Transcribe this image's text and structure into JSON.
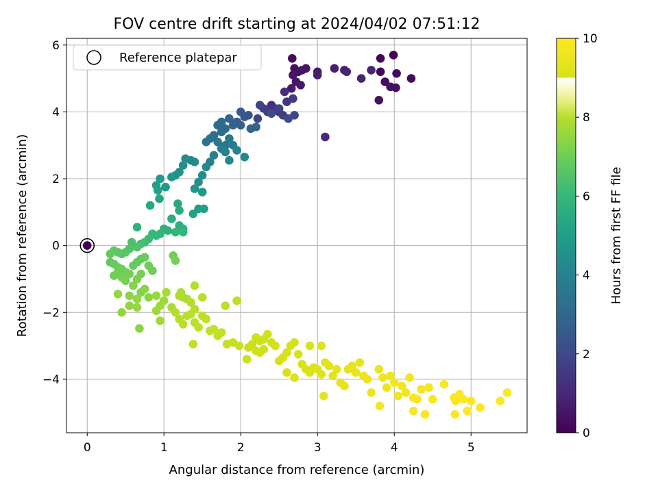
{
  "chart_data": {
    "type": "scatter",
    "title": "FOV centre drift starting at 2024/04/02 07:51:12",
    "xlabel": "Angular distance from reference (arcmin)",
    "ylabel": "Rotation from reference (arcmin)",
    "xlim": [
      -0.27,
      5.73
    ],
    "ylim": [
      -5.6,
      6.2
    ],
    "xticks": [
      0,
      1,
      2,
      3,
      4,
      5
    ],
    "yticks": [
      -4,
      -2,
      0,
      2,
      4,
      6
    ],
    "grid": true,
    "legend": {
      "position": "top-left",
      "entries": [
        "Reference platepar"
      ]
    },
    "colorbar": {
      "label": "Hours from first FF file",
      "min": 0,
      "max": 10,
      "ticks": [
        0,
        2,
        4,
        6,
        8,
        10
      ],
      "colormap": "viridis"
    },
    "reference_point": {
      "x": 0,
      "y": 0
    },
    "points": [
      [
        0.0,
        0.0,
        0.0
      ],
      [
        2.67,
        5.6,
        0.2
      ],
      [
        2.7,
        5.3,
        0.3
      ],
      [
        2.75,
        5.2,
        0.4
      ],
      [
        2.8,
        5.25,
        0.45
      ],
      [
        2.85,
        5.3,
        0.5
      ],
      [
        2.68,
        5.1,
        0.5
      ],
      [
        2.72,
        4.9,
        0.55
      ],
      [
        2.78,
        4.8,
        0.6
      ],
      [
        2.66,
        4.7,
        0.65
      ],
      [
        3.0,
        5.2,
        0.7
      ],
      [
        3.0,
        5.1,
        0.75
      ],
      [
        3.22,
        5.3,
        0.8
      ],
      [
        3.35,
        5.25,
        0.85
      ],
      [
        3.38,
        5.2,
        0.9
      ],
      [
        3.57,
        5.0,
        0.9
      ],
      [
        3.7,
        5.25,
        0.95
      ],
      [
        3.82,
        5.6,
        0.1
      ],
      [
        3.99,
        5.7,
        0.05
      ],
      [
        3.82,
        5.2,
        0.15
      ],
      [
        4.03,
        5.15,
        0.2
      ],
      [
        4.22,
        5.0,
        0.25
      ],
      [
        3.88,
        4.9,
        0.3
      ],
      [
        3.95,
        4.75,
        0.35
      ],
      [
        4.02,
        4.72,
        0.35
      ],
      [
        3.8,
        4.35,
        0.4
      ],
      [
        3.1,
        3.25,
        1.0
      ],
      [
        2.4,
        4.2,
        1.3
      ],
      [
        2.45,
        4.1,
        1.4
      ],
      [
        2.5,
        4.0,
        1.5
      ],
      [
        2.55,
        3.9,
        1.6
      ],
      [
        2.57,
        4.6,
        1.2
      ],
      [
        2.6,
        4.3,
        1.4
      ],
      [
        2.3,
        4.1,
        1.6
      ],
      [
        2.35,
        4.0,
        1.7
      ],
      [
        2.22,
        3.8,
        1.9
      ],
      [
        2.25,
        4.2,
        1.8
      ],
      [
        2.68,
        4.4,
        1.5
      ],
      [
        2.7,
        3.9,
        1.9
      ],
      [
        2.62,
        3.8,
        2.0
      ],
      [
        2.5,
        4.1,
        1.8
      ],
      [
        2.4,
        3.95,
        2.1
      ],
      [
        2.1,
        3.9,
        2.3
      ],
      [
        2.05,
        3.85,
        2.4
      ],
      [
        2.0,
        4.0,
        2.5
      ],
      [
        1.95,
        3.7,
        2.6
      ],
      [
        2.0,
        3.6,
        2.7
      ],
      [
        1.9,
        3.6,
        2.8
      ],
      [
        1.85,
        3.8,
        2.9
      ],
      [
        1.8,
        3.5,
        3.0
      ],
      [
        1.75,
        3.4,
        3.1
      ],
      [
        2.13,
        3.5,
        2.8
      ],
      [
        2.2,
        3.55,
        2.9
      ],
      [
        1.75,
        3.7,
        3.0
      ],
      [
        1.7,
        3.6,
        3.1
      ],
      [
        1.65,
        3.3,
        3.2
      ],
      [
        1.6,
        3.2,
        3.3
      ],
      [
        1.55,
        3.1,
        3.4
      ],
      [
        1.7,
        3.1,
        3.5
      ],
      [
        1.8,
        3.0,
        3.6
      ],
      [
        1.85,
        3.2,
        3.6
      ],
      [
        1.9,
        3.0,
        3.7
      ],
      [
        1.75,
        2.9,
        3.8
      ],
      [
        1.65,
        2.7,
        3.9
      ],
      [
        1.6,
        2.5,
        4.0
      ],
      [
        1.8,
        2.8,
        4.0
      ],
      [
        1.95,
        2.85,
        4.1
      ],
      [
        2.05,
        2.65,
        4.2
      ],
      [
        1.85,
        2.55,
        4.2
      ],
      [
        1.55,
        2.35,
        4.3
      ],
      [
        1.5,
        2.1,
        4.4
      ],
      [
        1.45,
        1.9,
        4.5
      ],
      [
        1.4,
        2.5,
        4.4
      ],
      [
        1.35,
        2.55,
        4.3
      ],
      [
        1.28,
        2.6,
        4.4
      ],
      [
        1.25,
        2.4,
        4.5
      ],
      [
        1.2,
        2.2,
        4.6
      ],
      [
        1.15,
        2.1,
        4.7
      ],
      [
        1.1,
        2.05,
        4.8
      ],
      [
        1.02,
        1.75,
        4.9
      ],
      [
        0.95,
        2.0,
        5.0
      ],
      [
        0.9,
        1.8,
        5.1
      ],
      [
        0.92,
        1.65,
        5.2
      ],
      [
        0.94,
        1.4,
        5.3
      ],
      [
        0.82,
        1.2,
        5.4
      ],
      [
        1.4,
        1.7,
        4.7
      ],
      [
        1.5,
        1.6,
        4.8
      ],
      [
        1.45,
        1.1,
        5.0
      ],
      [
        1.52,
        1.1,
        5.1
      ],
      [
        1.38,
        0.95,
        5.2
      ],
      [
        1.18,
        1.25,
        5.4
      ],
      [
        1.2,
        1.05,
        5.5
      ],
      [
        1.1,
        0.8,
        5.6
      ],
      [
        1.2,
        0.6,
        5.7
      ],
      [
        1.25,
        0.5,
        5.8
      ],
      [
        1.15,
        0.4,
        5.9
      ],
      [
        1.25,
        0.4,
        5.9
      ],
      [
        1.05,
        0.45,
        5.8
      ],
      [
        1.0,
        0.5,
        5.7
      ],
      [
        0.95,
        0.35,
        5.9
      ],
      [
        0.9,
        0.3,
        6.0
      ],
      [
        0.85,
        0.35,
        6.0
      ],
      [
        0.8,
        0.2,
        6.1
      ],
      [
        0.75,
        0.1,
        6.2
      ],
      [
        0.7,
        0.05,
        6.3
      ],
      [
        0.65,
        0.55,
        5.8
      ],
      [
        0.6,
        0.0,
        6.4
      ],
      [
        0.58,
        0.1,
        6.4
      ],
      [
        0.65,
        -0.05,
        6.5
      ],
      [
        0.55,
        -0.1,
        6.5
      ],
      [
        0.5,
        -0.2,
        6.6
      ],
      [
        0.45,
        -0.25,
        6.6
      ],
      [
        0.4,
        -0.2,
        6.7
      ],
      [
        0.35,
        -0.15,
        6.7
      ],
      [
        0.3,
        -0.25,
        6.8
      ],
      [
        0.3,
        -0.5,
        6.8
      ],
      [
        0.35,
        -0.55,
        6.9
      ],
      [
        0.4,
        -0.65,
        6.9
      ],
      [
        0.45,
        -0.7,
        7.0
      ],
      [
        0.5,
        -0.8,
        7.0
      ],
      [
        0.55,
        -0.85,
        7.1
      ],
      [
        0.45,
        -0.95,
        7.1
      ],
      [
        0.4,
        -0.8,
        7.0
      ],
      [
        0.35,
        -0.9,
        7.0
      ],
      [
        0.5,
        -1.05,
        7.1
      ],
      [
        0.6,
        -0.6,
        6.9
      ],
      [
        0.65,
        -0.5,
        6.8
      ],
      [
        0.7,
        -0.4,
        6.8
      ],
      [
        0.75,
        -0.35,
        6.9
      ],
      [
        0.8,
        -0.6,
        7.0
      ],
      [
        0.85,
        -0.75,
        7.0
      ],
      [
        0.7,
        -0.85,
        7.1
      ],
      [
        0.65,
        -1.0,
        7.2
      ],
      [
        0.6,
        -1.2,
        7.3
      ],
      [
        0.7,
        -1.4,
        7.3
      ],
      [
        0.75,
        -1.3,
        7.4
      ],
      [
        0.8,
        -1.55,
        7.4
      ],
      [
        0.65,
        -1.6,
        7.5
      ],
      [
        0.55,
        -1.5,
        7.4
      ],
      [
        0.4,
        -1.45,
        7.5
      ],
      [
        0.45,
        -2.0,
        7.5
      ],
      [
        0.55,
        -1.8,
        7.5
      ],
      [
        0.65,
        -1.85,
        7.6
      ],
      [
        0.68,
        -2.48,
        7.4
      ],
      [
        0.9,
        -1.5,
        7.6
      ],
      [
        0.95,
        -1.8,
        7.7
      ],
      [
        0.9,
        -1.95,
        7.7
      ],
      [
        0.95,
        -2.25,
        7.7
      ],
      [
        1.0,
        -1.65,
        7.7
      ],
      [
        1.03,
        -1.4,
        7.8
      ],
      [
        1.1,
        -1.85,
        7.8
      ],
      [
        1.12,
        -0.3,
        7.0
      ],
      [
        1.15,
        -0.45,
        7.1
      ],
      [
        1.2,
        -1.5,
        7.9
      ],
      [
        1.25,
        -1.55,
        7.9
      ],
      [
        1.3,
        -1.6,
        7.9
      ],
      [
        1.35,
        -1.7,
        8.0
      ],
      [
        1.4,
        -1.9,
        8.0
      ],
      [
        1.22,
        -1.4,
        7.9
      ],
      [
        1.15,
        -2.0,
        8.0
      ],
      [
        1.2,
        -2.2,
        8.0
      ],
      [
        1.25,
        -2.35,
        8.1
      ],
      [
        1.3,
        -2.1,
        8.1
      ],
      [
        1.35,
        -2.05,
        8.2
      ],
      [
        1.4,
        -2.3,
        8.2
      ],
      [
        1.45,
        -2.45,
        8.2
      ],
      [
        1.5,
        -2.1,
        8.3
      ],
      [
        1.4,
        -1.2,
        8.0
      ],
      [
        1.5,
        -1.55,
        8.1
      ],
      [
        1.55,
        -2.2,
        8.3
      ],
      [
        1.6,
        -2.55,
        8.3
      ],
      [
        1.65,
        -2.5,
        8.4
      ],
      [
        1.7,
        -2.7,
        8.4
      ],
      [
        1.75,
        -2.6,
        8.4
      ],
      [
        1.8,
        -1.8,
        8.2
      ],
      [
        1.82,
        -2.95,
        8.5
      ],
      [
        1.9,
        -2.9,
        8.5
      ],
      [
        1.98,
        -3.0,
        8.5
      ],
      [
        1.95,
        -1.65,
        8.2
      ],
      [
        1.38,
        -2.95,
        8.4
      ],
      [
        2.1,
        -3.05,
        8.6
      ],
      [
        2.15,
        -2.95,
        8.6
      ],
      [
        2.2,
        -2.75,
        8.7
      ],
      [
        2.25,
        -2.85,
        8.7
      ],
      [
        2.3,
        -2.8,
        8.7
      ],
      [
        2.35,
        -2.65,
        8.8
      ],
      [
        2.4,
        -2.9,
        8.8
      ],
      [
        2.45,
        -3.0,
        8.8
      ],
      [
        2.2,
        -3.15,
        8.7
      ],
      [
        2.25,
        -3.2,
        8.8
      ],
      [
        2.3,
        -3.1,
        8.8
      ],
      [
        2.08,
        -3.4,
        8.7
      ],
      [
        2.5,
        -3.45,
        8.9
      ],
      [
        2.55,
        -3.35,
        8.9
      ],
      [
        2.6,
        -3.2,
        8.9
      ],
      [
        2.65,
        -3.0,
        9.0
      ],
      [
        2.7,
        -2.9,
        8.9
      ],
      [
        2.75,
        -3.25,
        9.0
      ],
      [
        2.6,
        -3.8,
        9.0
      ],
      [
        2.7,
        -3.95,
        9.1
      ],
      [
        2.8,
        -3.55,
        9.0
      ],
      [
        2.85,
        -3.7,
        9.1
      ],
      [
        2.9,
        -3.8,
        9.1
      ],
      [
        2.95,
        -3.65,
        9.1
      ],
      [
        2.9,
        -3.0,
        9.0
      ],
      [
        3.0,
        -3.7,
        9.2
      ],
      [
        3.05,
        -3.85,
        9.2
      ],
      [
        3.08,
        -4.5,
        9.3
      ],
      [
        3.05,
        -3.0,
        9.1
      ],
      [
        3.1,
        -3.5,
        9.2
      ],
      [
        3.15,
        -3.6,
        9.3
      ],
      [
        3.2,
        -3.9,
        9.3
      ],
      [
        3.25,
        -3.7,
        9.3
      ],
      [
        3.3,
        -4.1,
        9.4
      ],
      [
        3.35,
        -4.2,
        9.4
      ],
      [
        3.4,
        -3.7,
        9.3
      ],
      [
        3.45,
        -3.6,
        9.4
      ],
      [
        3.5,
        -3.8,
        9.4
      ],
      [
        3.55,
        -3.5,
        9.4
      ],
      [
        3.6,
        -3.9,
        9.5
      ],
      [
        3.65,
        -4.0,
        9.5
      ],
      [
        3.7,
        -4.4,
        9.6
      ],
      [
        3.8,
        -3.7,
        9.5
      ],
      [
        3.85,
        -3.95,
        9.6
      ],
      [
        3.9,
        -4.25,
        9.6
      ],
      [
        3.95,
        -3.9,
        9.6
      ],
      [
        4.0,
        -4.1,
        9.7
      ],
      [
        4.05,
        -4.5,
        9.7
      ],
      [
        4.1,
        -4.2,
        9.7
      ],
      [
        4.15,
        -4.4,
        9.7
      ],
      [
        4.2,
        -3.95,
        9.7
      ],
      [
        4.25,
        -4.55,
        9.8
      ],
      [
        4.3,
        -4.6,
        9.8
      ],
      [
        4.35,
        -4.3,
        9.8
      ],
      [
        4.4,
        -5.05,
        9.9
      ],
      [
        4.45,
        -4.25,
        9.8
      ],
      [
        4.25,
        -4.95,
        9.9
      ],
      [
        3.81,
        -4.8,
        9.8
      ],
      [
        4.5,
        -4.6,
        9.9
      ],
      [
        4.65,
        -4.15,
        9.9
      ],
      [
        4.78,
        -4.55,
        9.9
      ],
      [
        4.8,
        -4.65,
        10.0
      ],
      [
        4.85,
        -4.45,
        10.0
      ],
      [
        4.9,
        -4.6,
        10.0
      ],
      [
        4.95,
        -4.95,
        10.0
      ],
      [
        5.0,
        -4.65,
        10.0
      ],
      [
        4.79,
        -5.05,
        10.0
      ],
      [
        5.12,
        -4.85,
        10.0
      ],
      [
        5.38,
        -4.65,
        10.0
      ],
      [
        5.47,
        -4.4,
        10.0
      ]
    ]
  }
}
